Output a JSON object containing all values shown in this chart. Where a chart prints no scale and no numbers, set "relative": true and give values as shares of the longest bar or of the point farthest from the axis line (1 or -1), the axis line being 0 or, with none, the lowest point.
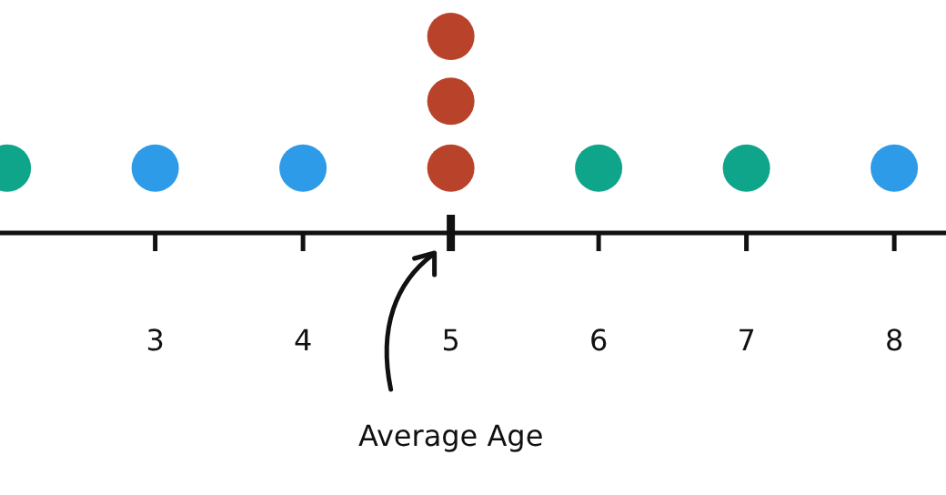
{
  "chart_data": {
    "type": "scatter",
    "relative": true,
    "marker": "circle",
    "x": [
      2,
      3,
      4,
      5,
      5,
      5,
      6,
      7,
      8
    ],
    "values": [
      0.33,
      0.33,
      0.33,
      0.33,
      0.67,
      1,
      0.33,
      0.33,
      0.33
    ],
    "colors": [
      "#0fa58a",
      "#2d9be8",
      "#2d9be8",
      "#b9432a",
      "#b9432a",
      "#b9432a",
      "#0fa58a",
      "#0fa58a",
      "#2d9be8"
    ],
    "xlim": [
      1.95,
      8.35
    ],
    "xticks": [
      3,
      4,
      5,
      6,
      7,
      8
    ],
    "ref_lines": [
      {
        "axis": "x",
        "value": 5,
        "label": "Average Age"
      }
    ]
  }
}
